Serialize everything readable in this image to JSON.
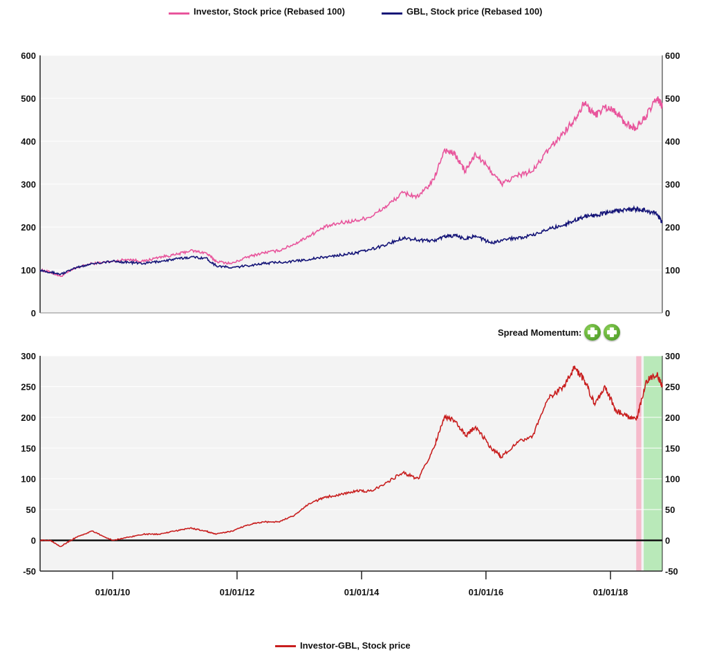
{
  "spread_momentum_label": "Spread Momentum:",
  "colors": {
    "investor": "#e8559c",
    "gbl": "#141477",
    "spread": "#c81e1e",
    "plot_bg": "#f3f3f3",
    "pink_band": "#f6b4c7",
    "green_band": "#b3e8b3"
  },
  "icons": [
    "plus-circle-icon",
    "plus-circle-icon"
  ],
  "chart_data": [
    {
      "type": "line",
      "xlabel": "",
      "ylabel": "",
      "ylim": [
        0,
        600
      ],
      "yticks": [
        "0",
        "100",
        "200",
        "300",
        "400",
        "500",
        "600"
      ],
      "y2ticks": [
        "0",
        "100",
        "200",
        "300",
        "400",
        "500",
        "600"
      ],
      "grid": true,
      "legend_position": "top",
      "series": [
        {
          "name": "Investor, Stock price (Rebased 100)",
          "x": [
            "2008-11-01",
            "2009-01-01",
            "2009-03-01",
            "2009-06-01",
            "2009-09-01",
            "2010-01-01",
            "2010-04-01",
            "2010-07-01",
            "2010-10-01",
            "2011-01-01",
            "2011-04-01",
            "2011-07-01",
            "2011-09-01",
            "2011-12-01",
            "2012-03-01",
            "2012-06-01",
            "2012-09-01",
            "2012-12-01",
            "2013-03-01",
            "2013-06-01",
            "2013-09-01",
            "2013-12-01",
            "2014-03-01",
            "2014-06-01",
            "2014-09-01",
            "2014-12-01",
            "2015-03-01",
            "2015-05-01",
            "2015-07-01",
            "2015-09-01",
            "2015-11-01",
            "2016-02-01",
            "2016-04-01",
            "2016-07-01",
            "2016-10-01",
            "2017-01-01",
            "2017-04-01",
            "2017-06-01",
            "2017-08-01",
            "2017-10-01",
            "2017-12-01",
            "2018-02-01",
            "2018-04-01",
            "2018-06-01",
            "2018-08-01",
            "2018-10-01",
            "2018-11-01"
          ],
          "values": [
            100,
            95,
            85,
            105,
            115,
            120,
            125,
            120,
            130,
            135,
            145,
            140,
            120,
            115,
            130,
            140,
            145,
            160,
            180,
            200,
            210,
            215,
            225,
            250,
            280,
            270,
            310,
            380,
            370,
            330,
            370,
            330,
            300,
            320,
            330,
            380,
            420,
            450,
            490,
            460,
            480,
            470,
            440,
            430,
            460,
            500,
            480
          ]
        },
        {
          "name": "GBL, Stock price (Rebased 100)",
          "x": [
            "2008-11-01",
            "2009-01-01",
            "2009-03-01",
            "2009-06-01",
            "2009-09-01",
            "2010-01-01",
            "2010-04-01",
            "2010-07-01",
            "2010-10-01",
            "2011-01-01",
            "2011-04-01",
            "2011-07-01",
            "2011-09-01",
            "2011-12-01",
            "2012-03-01",
            "2012-06-01",
            "2012-09-01",
            "2012-12-01",
            "2013-03-01",
            "2013-06-01",
            "2013-09-01",
            "2013-12-01",
            "2014-03-01",
            "2014-06-01",
            "2014-09-01",
            "2014-12-01",
            "2015-03-01",
            "2015-05-01",
            "2015-07-01",
            "2015-09-01",
            "2015-11-01",
            "2016-02-01",
            "2016-04-01",
            "2016-07-01",
            "2016-10-01",
            "2017-01-01",
            "2017-04-01",
            "2017-06-01",
            "2017-08-01",
            "2017-10-01",
            "2017-12-01",
            "2018-02-01",
            "2018-04-01",
            "2018-06-01",
            "2018-08-01",
            "2018-10-01",
            "2018-11-01"
          ],
          "values": [
            100,
            95,
            90,
            105,
            115,
            120,
            118,
            115,
            120,
            125,
            130,
            128,
            110,
            105,
            110,
            115,
            118,
            120,
            125,
            130,
            135,
            140,
            148,
            160,
            175,
            170,
            168,
            178,
            180,
            172,
            180,
            162,
            170,
            175,
            180,
            195,
            205,
            215,
            225,
            228,
            232,
            238,
            240,
            242,
            238,
            230,
            210
          ]
        }
      ]
    },
    {
      "type": "line",
      "xlabel": "",
      "ylabel": "",
      "ylim": [
        -50,
        300
      ],
      "yticks": [
        "-50",
        "0",
        "50",
        "100",
        "150",
        "200",
        "250",
        "300"
      ],
      "y2ticks": [
        "-50",
        "0",
        "50",
        "100",
        "150",
        "200",
        "250",
        "300"
      ],
      "xticks": [
        "01/01/10",
        "01/01/12",
        "01/01/14",
        "01/01/16",
        "01/01/18"
      ],
      "grid": true,
      "legend_position": "bottom",
      "zero_line": 0,
      "shaded_regions": [
        {
          "start": "2018-06-01",
          "end": "2018-07-01",
          "color": "pink"
        },
        {
          "start": "2018-07-15",
          "end": "2018-11-01",
          "color": "green"
        }
      ],
      "series": [
        {
          "name": "Investor-GBL, Stock price",
          "x": [
            "2008-11-01",
            "2009-01-01",
            "2009-03-01",
            "2009-06-01",
            "2009-09-01",
            "2010-01-01",
            "2010-04-01",
            "2010-07-01",
            "2010-10-01",
            "2011-01-01",
            "2011-04-01",
            "2011-07-01",
            "2011-09-01",
            "2011-12-01",
            "2012-03-01",
            "2012-06-01",
            "2012-09-01",
            "2012-12-01",
            "2013-03-01",
            "2013-06-01",
            "2013-09-01",
            "2013-12-01",
            "2014-03-01",
            "2014-06-01",
            "2014-09-01",
            "2014-12-01",
            "2015-03-01",
            "2015-05-01",
            "2015-07-01",
            "2015-09-01",
            "2015-11-01",
            "2016-02-01",
            "2016-04-01",
            "2016-07-01",
            "2016-10-01",
            "2017-01-01",
            "2017-04-01",
            "2017-06-01",
            "2017-08-01",
            "2017-10-01",
            "2017-12-01",
            "2018-02-01",
            "2018-04-01",
            "2018-06-01",
            "2018-08-01",
            "2018-10-01",
            "2018-11-01"
          ],
          "values": [
            0,
            0,
            -10,
            5,
            15,
            0,
            5,
            10,
            10,
            15,
            20,
            15,
            10,
            15,
            25,
            30,
            30,
            40,
            60,
            70,
            75,
            80,
            80,
            95,
            110,
            100,
            150,
            200,
            195,
            170,
            185,
            150,
            135,
            160,
            170,
            230,
            250,
            280,
            260,
            220,
            250,
            210,
            205,
            195,
            260,
            270,
            250
          ]
        }
      ]
    }
  ]
}
